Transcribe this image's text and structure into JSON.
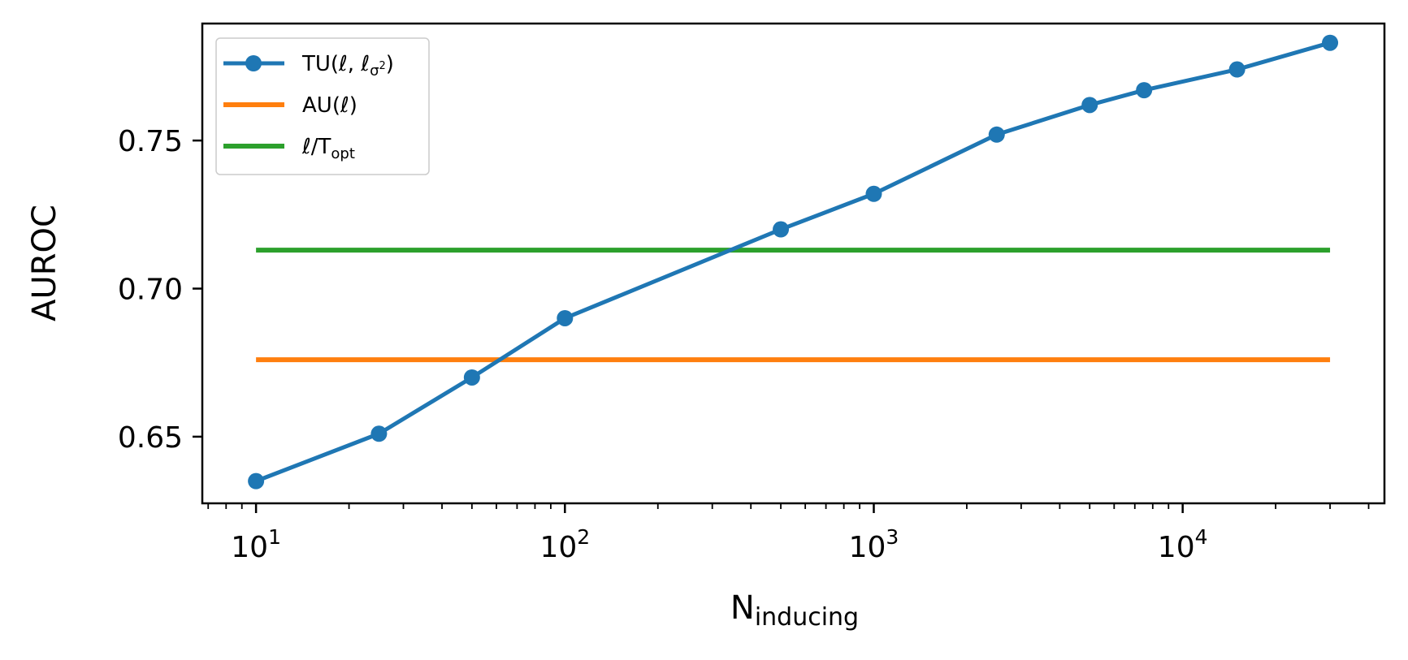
{
  "chart_data": {
    "type": "line",
    "x_scale": "log",
    "xlabel": "N",
    "xlabel_sub": "inducing",
    "ylabel": "AUROC",
    "xlim": [
      6.7,
      45000
    ],
    "ylim": [
      0.6275,
      0.7895
    ],
    "y_ticks": [
      0.65,
      0.7,
      0.75
    ],
    "y_tick_labels": [
      "0.65",
      "0.70",
      "0.75"
    ],
    "x_major_ticks": [
      10,
      100,
      1000,
      10000
    ],
    "x_tick_labels": [
      {
        "base": "10",
        "exp": "1"
      },
      {
        "base": "10",
        "exp": "2"
      },
      {
        "base": "10",
        "exp": "3"
      },
      {
        "base": "10",
        "exp": "4"
      }
    ],
    "grid": false,
    "legend_position": "top-left",
    "x_range_lines": [
      10,
      30000
    ],
    "series": [
      {
        "name": "TU(ℓ, ℓσ²)",
        "legend": {
          "main": "TU(ℓ, ℓ",
          "sub": "σ",
          "sup": "2",
          "tail": ")"
        },
        "color": "#1f77b4",
        "marker": "circle",
        "x": [
          10,
          25,
          50,
          100,
          500,
          1000,
          2500,
          5000,
          7500,
          15000,
          30000
        ],
        "y": [
          0.635,
          0.651,
          0.67,
          0.69,
          0.72,
          0.732,
          0.752,
          0.762,
          0.767,
          0.774,
          0.783
        ]
      },
      {
        "name": "AU(ℓ)",
        "legend": {
          "main": "AU(ℓ)",
          "sub": "",
          "sup": "",
          "tail": ""
        },
        "color": "#ff7f0e",
        "type": "hline",
        "y": 0.676
      },
      {
        "name": "ℓ/Topt",
        "legend": {
          "main": "ℓ/T",
          "sub": "opt",
          "sup": "",
          "tail": ""
        },
        "color": "#2ca02c",
        "type": "hline",
        "y": 0.713
      }
    ]
  }
}
